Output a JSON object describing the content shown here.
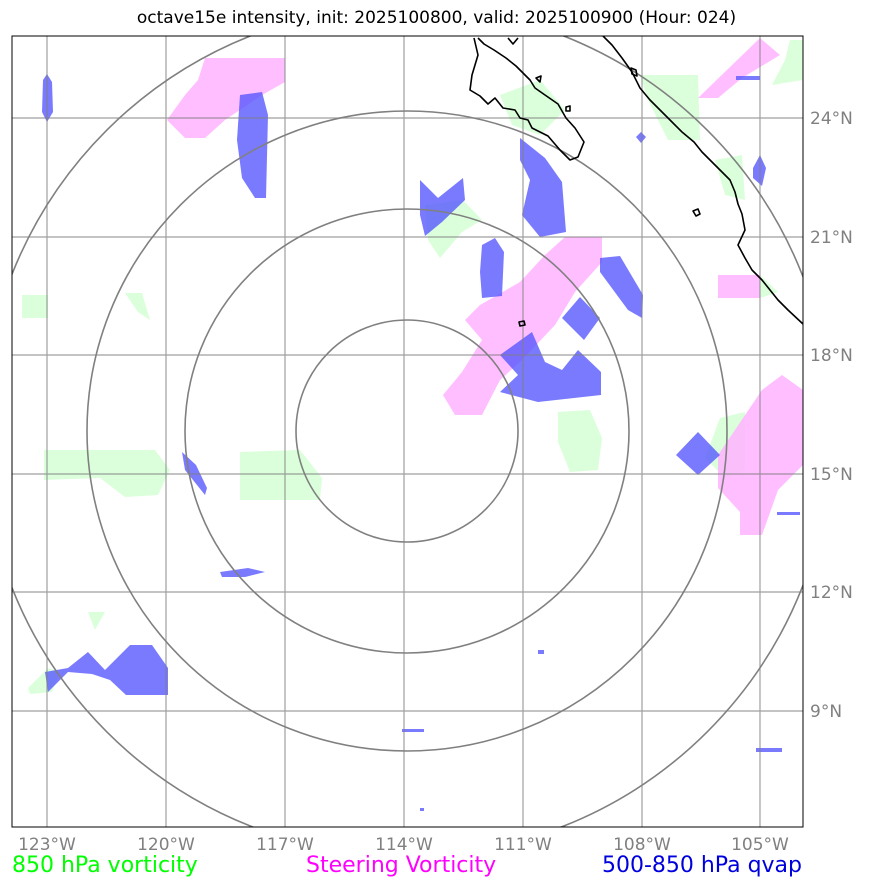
{
  "title": "octave15e intensity, init: 2025100800, valid: 2025100900 (Hour: 024)",
  "lon_labels": [
    "123°W",
    "120°W",
    "117°W",
    "114°W",
    "111°W",
    "108°W",
    "105°W"
  ],
  "lat_labels": [
    "24°N",
    "21°N",
    "18°N",
    "15°N",
    "12°N",
    "9°N"
  ],
  "legend": {
    "vort850": {
      "label": "850 hPa vorticity",
      "color": "#00ff00"
    },
    "steering": {
      "label": "Steering Vorticity",
      "color": "#ff00ff"
    },
    "qvap": {
      "label": "500-850 hPa qvap",
      "color": "#0000dd"
    }
  },
  "colors": {
    "vort850_fill": "#ccffcc",
    "steering_fill": "#ffb3ff",
    "qvap_fill": "#6666ff",
    "grid": "#808080",
    "coast": "#000000"
  }
}
